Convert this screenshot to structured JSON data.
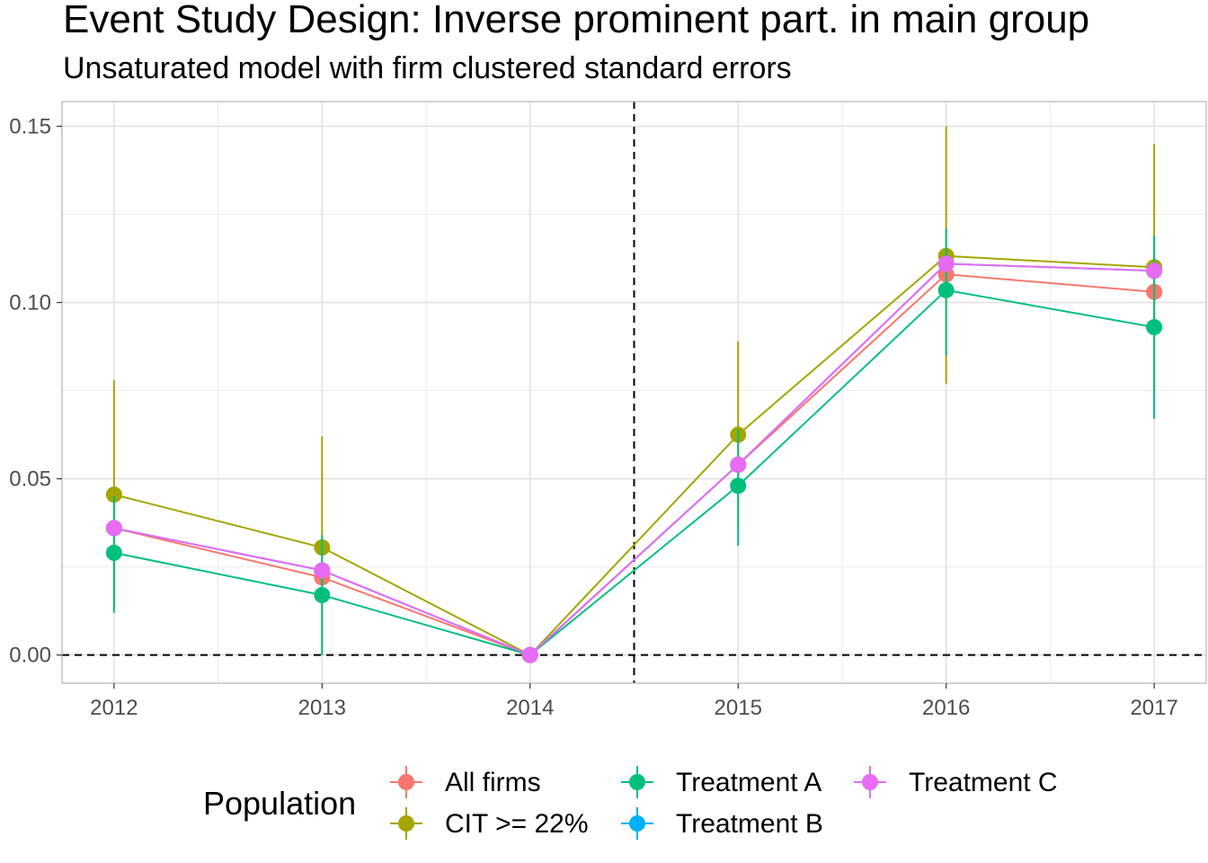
{
  "title": "Event Study Design: Inverse prominent part. in main group",
  "subtitle": "Unsaturated model with firm clustered standard errors",
  "chart_data": {
    "type": "line",
    "title": "Event Study Design: Inverse prominent part. in main group",
    "subtitle": "Unsaturated model with firm clustered standard errors",
    "xlabel": "",
    "ylabel": "",
    "x": [
      2012,
      2013,
      2014,
      2015,
      2016,
      2017
    ],
    "x_tick_labels": [
      "2012",
      "2013",
      "2014",
      "2015",
      "2016",
      "2017"
    ],
    "y_tick_labels": [
      "0.00",
      "0.05",
      "0.10",
      "0.15"
    ],
    "y_ticks": [
      0,
      0.05,
      0.1,
      0.15
    ],
    "xlim": [
      2011.75,
      2017.25
    ],
    "ylim": [
      -0.008,
      0.157
    ],
    "grid": true,
    "reference_lines": {
      "horizontal_y": 0,
      "vertical_x": 2014.5,
      "style": "dashed"
    },
    "legend": {
      "title": "Population",
      "position": "bottom"
    },
    "series": [
      {
        "name": "All firms",
        "color": "#F8766D",
        "values": [
          0.036,
          0.022,
          0.0,
          0.054,
          0.108,
          0.103
        ],
        "ci_low": [
          0.036,
          0.022,
          0.0,
          0.054,
          0.108,
          0.103
        ],
        "ci_high": [
          0.036,
          0.022,
          0.0,
          0.054,
          0.108,
          0.103
        ]
      },
      {
        "name": "CIT >= 22%",
        "color": "#A3A500",
        "values": [
          0.0455,
          0.0305,
          0.0,
          0.0625,
          0.1132,
          0.11
        ],
        "ci_low": [
          0.013,
          0.0,
          0.0,
          0.036,
          0.077,
          0.075
        ],
        "ci_high": [
          0.078,
          0.062,
          0.0,
          0.089,
          0.15,
          0.145
        ]
      },
      {
        "name": "Treatment A",
        "color": "#00BF7D",
        "values": [
          0.029,
          0.017,
          0.0,
          0.048,
          0.1035,
          0.093
        ],
        "ci_low": [
          0.012,
          0.0,
          0.0,
          0.031,
          0.085,
          0.067
        ],
        "ci_high": [
          0.045,
          0.034,
          0.0,
          0.064,
          0.121,
          0.119
        ]
      },
      {
        "name": "Treatment B",
        "color": "#00B0F6",
        "values": [
          0.036,
          0.024,
          0.0,
          0.054,
          0.111,
          0.109
        ],
        "ci_low": [
          0.036,
          0.024,
          0.0,
          0.054,
          0.111,
          0.109
        ],
        "ci_high": [
          0.036,
          0.024,
          0.0,
          0.054,
          0.111,
          0.109
        ]
      },
      {
        "name": "Treatment C",
        "color": "#E76BF3",
        "values": [
          0.036,
          0.024,
          0.0,
          0.054,
          0.111,
          0.109
        ],
        "ci_low": [
          0.036,
          0.024,
          0.0,
          0.054,
          0.111,
          0.109
        ],
        "ci_high": [
          0.036,
          0.024,
          0.0,
          0.054,
          0.111,
          0.109
        ]
      }
    ]
  }
}
